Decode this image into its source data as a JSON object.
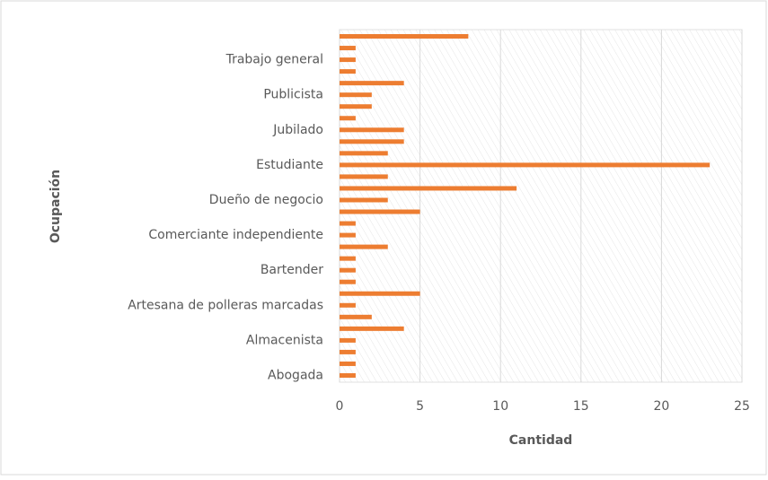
{
  "chart_data": {
    "type": "hbar",
    "x_label": "Cantidad",
    "y_label": "Ocupación",
    "categories": [
      "Abogada",
      null,
      null,
      "Almacenista",
      null,
      null,
      "Artesana de polleras marcadas",
      null,
      null,
      "Bartender",
      null,
      null,
      "Comerciante independiente",
      null,
      null,
      "Dueño de negocio",
      null,
      null,
      "Estudiante",
      null,
      null,
      "Jubilado",
      null,
      null,
      "Publicista",
      null,
      null,
      "Trabajo general",
      null,
      null
    ],
    "values": [
      1,
      1,
      1,
      1,
      4,
      2,
      1,
      5,
      1,
      1,
      1,
      3,
      1,
      1,
      5,
      3,
      11,
      3,
      23,
      3,
      4,
      4,
      1,
      2,
      2,
      4,
      1,
      1,
      1,
      8
    ],
    "color": "#ed7d31",
    "xlim": [
      0,
      25
    ],
    "xticks": [
      0,
      5,
      10,
      15,
      20,
      25
    ],
    "grid": true
  }
}
